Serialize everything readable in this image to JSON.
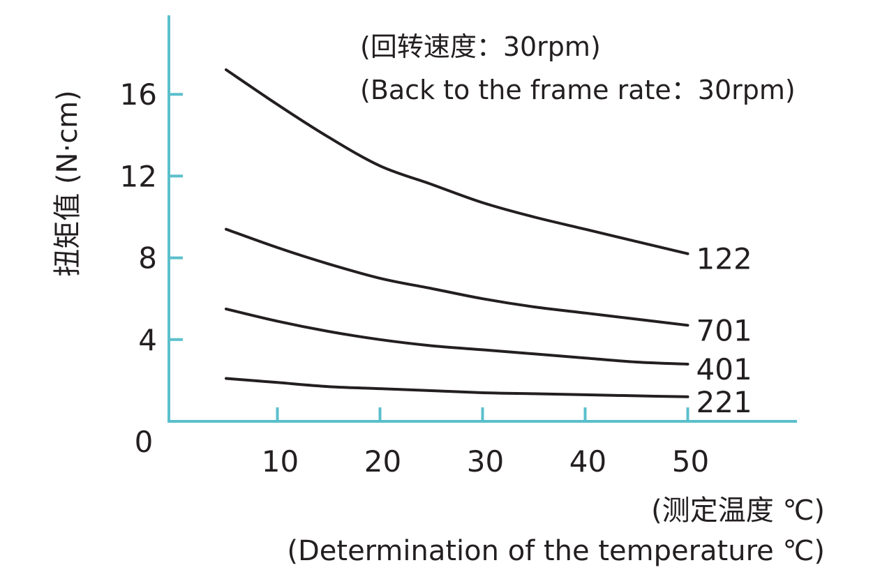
{
  "chart_data": {
    "type": "line",
    "annotation": [
      "(回转速度：30rpm)",
      "(Back to the frame rate：30rpm)"
    ],
    "ylabel": "扭矩值 (N·cm)",
    "xlabel": [
      "(测定温度 ℃)",
      "(Determination of the temperature  ℃)"
    ],
    "origin_label": "0",
    "x_ticks": [
      10,
      20,
      30,
      40,
      50
    ],
    "y_ticks": [
      4,
      8,
      12,
      16
    ],
    "xlim": [
      0,
      58
    ],
    "ylim": [
      0,
      18
    ],
    "grid": false,
    "axis_color": "#5bbfcc",
    "line_color": "#231f20",
    "series": [
      {
        "name": "122",
        "x": [
          5,
          10,
          15,
          20,
          25,
          30,
          35,
          40,
          45,
          50
        ],
        "values": [
          17.2,
          15.5,
          13.9,
          12.5,
          11.6,
          10.7,
          10.0,
          9.4,
          8.8,
          8.2
        ]
      },
      {
        "name": "701",
        "x": [
          5,
          10,
          15,
          20,
          25,
          30,
          35,
          40,
          45,
          50
        ],
        "values": [
          9.4,
          8.5,
          7.7,
          7.0,
          6.5,
          6.0,
          5.6,
          5.3,
          5.0,
          4.7
        ]
      },
      {
        "name": "401",
        "x": [
          5,
          10,
          15,
          20,
          25,
          30,
          35,
          40,
          45,
          50
        ],
        "values": [
          5.5,
          4.9,
          4.4,
          4.0,
          3.7,
          3.5,
          3.3,
          3.1,
          2.9,
          2.8
        ]
      },
      {
        "name": "221",
        "x": [
          5,
          10,
          15,
          20,
          25,
          30,
          35,
          40,
          45,
          50
        ],
        "values": [
          2.1,
          1.9,
          1.7,
          1.6,
          1.5,
          1.4,
          1.35,
          1.3,
          1.25,
          1.2
        ]
      }
    ]
  }
}
